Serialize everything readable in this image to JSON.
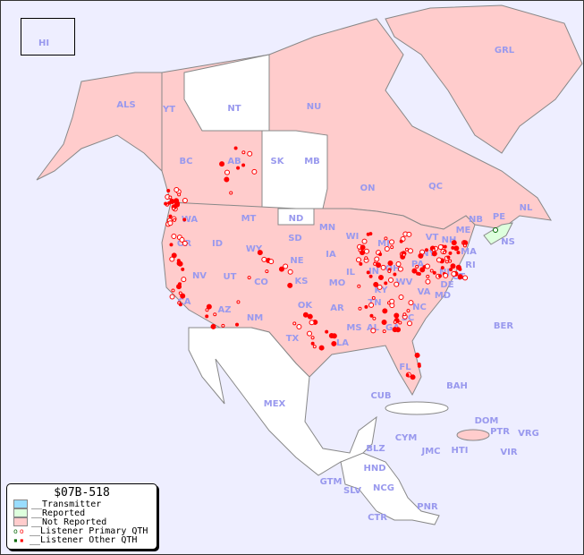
{
  "legend": {
    "title": "$07B-518",
    "items": [
      {
        "label": "__Transmitter",
        "color": "#99ddff"
      },
      {
        "label": "__Reported",
        "color": "#ddffdd"
      },
      {
        "label": "__Not Reported",
        "color": "#ffcccc"
      },
      {
        "label": "__Listener Primary QTH"
      },
      {
        "label": "__Listener Other QTH"
      }
    ]
  },
  "colors": {
    "ocean": "#eeeeff",
    "not_reported": "#ffcccc",
    "reported": "#ddffdd",
    "unlisted": "#ffffff",
    "label": "#9999ee",
    "listener": "#ff0000"
  },
  "regions": [
    "HI",
    "ALS",
    "YT",
    "NT",
    "NU",
    "GRL",
    "BC",
    "AB",
    "SK",
    "MB",
    "ON",
    "QC",
    "NL",
    "NB",
    "PE",
    "NS",
    "WA",
    "OR",
    "ID",
    "MT",
    "WY",
    "ND",
    "SD",
    "NE",
    "MN",
    "WI",
    "IA",
    "IL",
    "MI",
    "IN",
    "OH",
    "PA",
    "NY",
    "VT",
    "NH",
    "ME",
    "MA",
    "CT",
    "RI",
    "NJ",
    "DE",
    "MD",
    "WV",
    "VA",
    "NV",
    "UT",
    "CO",
    "KS",
    "MO",
    "KY",
    "CA",
    "AZ",
    "NM",
    "OK",
    "AR",
    "TN",
    "NC",
    "SC",
    "MS",
    "AL",
    "GA",
    "TX",
    "LA",
    "FL",
    "MEX",
    "BER",
    "BAH",
    "CUB",
    "DOM",
    "PTR",
    "VRG",
    "CYM",
    "JMC",
    "HTI",
    "VIR",
    "BLZ",
    "HND",
    "GTM",
    "SLV",
    "NCG",
    "CTR",
    "PNR"
  ]
}
